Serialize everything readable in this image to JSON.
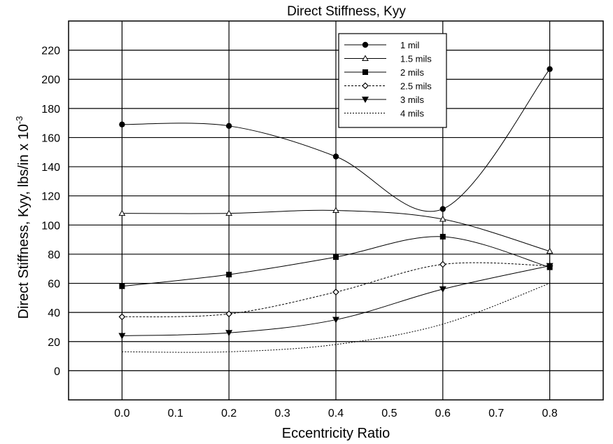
{
  "chart_data": {
    "type": "line",
    "title": "Direct Stiffness, Kyy",
    "xlabel": "Eccentricity Ratio",
    "ylabel": "Direct Stiffness, Kyy, lbs/in x 10",
    "ylabel_exponent": "-3",
    "xlim": [
      -0.1,
      0.9
    ],
    "ylim": [
      -20,
      240
    ],
    "x_ticks": [
      "0.0",
      "0.1",
      "0.2",
      "0.3",
      "0.4",
      "0.5",
      "0.6",
      "0.7",
      "0.8"
    ],
    "y_ticks": [
      "0",
      "20",
      "40",
      "60",
      "80",
      "100",
      "120",
      "140",
      "160",
      "180",
      "200",
      "220"
    ],
    "grid": true,
    "legend_position": "top-right",
    "x": [
      0.0,
      0.2,
      0.4,
      0.6,
      0.8
    ],
    "series": [
      {
        "name": "1 mil",
        "marker": "circle",
        "dash": "",
        "values": [
          169,
          168,
          147,
          111,
          207
        ]
      },
      {
        "name": "1.5 mils",
        "marker": "triangle",
        "dash": "",
        "values": [
          108,
          108,
          110,
          104,
          82
        ]
      },
      {
        "name": "2 mils",
        "marker": "square",
        "dash": "",
        "values": [
          58,
          66,
          78,
          92,
          71
        ]
      },
      {
        "name": "2.5 mils",
        "marker": "diamond",
        "dash": "3,2",
        "values": [
          37,
          39,
          54,
          73,
          72
        ]
      },
      {
        "name": "3 mils",
        "marker": "down-triangle",
        "dash": "",
        "values": [
          24,
          26,
          35,
          56,
          72
        ]
      },
      {
        "name": "4 mils",
        "marker": "none",
        "dash": "2,2",
        "values": [
          13,
          13,
          18,
          32,
          60
        ]
      }
    ]
  }
}
